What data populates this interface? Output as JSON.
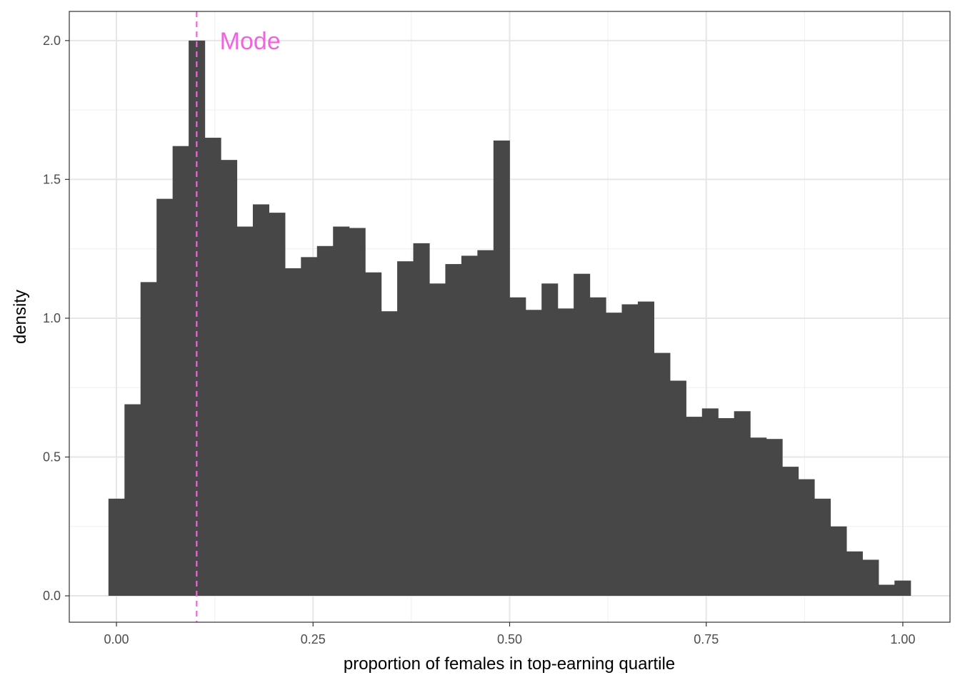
{
  "chart_data": {
    "type": "bar",
    "subtype": "histogram",
    "title": "",
    "xlabel": "proportion of females in top-earning quartile",
    "ylabel": "density",
    "xlim": [
      -0.06,
      1.06
    ],
    "ylim": [
      -0.095,
      2.105
    ],
    "x_ticks": [
      0.0,
      0.25,
      0.5,
      0.75,
      1.0
    ],
    "x_tick_labels": [
      "0.00",
      "0.25",
      "0.50",
      "0.75",
      "1.00"
    ],
    "y_ticks": [
      0.0,
      0.5,
      1.0,
      1.5,
      2.0
    ],
    "y_tick_labels": [
      "0.0",
      "0.5",
      "1.0",
      "1.5",
      "2.0"
    ],
    "grid": true,
    "theme": "bw",
    "bar_color": "#474747",
    "bin_width": 0.0204,
    "bin_start": -0.0102,
    "values": [
      0.35,
      0.69,
      1.13,
      1.43,
      1.62,
      2.0,
      1.65,
      1.57,
      1.33,
      1.41,
      1.38,
      1.18,
      1.22,
      1.26,
      1.33,
      1.325,
      1.165,
      1.025,
      1.205,
      1.27,
      1.125,
      1.195,
      1.225,
      1.245,
      1.64,
      1.075,
      1.03,
      1.125,
      1.035,
      1.16,
      1.075,
      1.02,
      1.05,
      1.06,
      0.875,
      0.775,
      0.645,
      0.675,
      0.64,
      0.665,
      0.57,
      0.565,
      0.465,
      0.42,
      0.35,
      0.25,
      0.16,
      0.13,
      0.04,
      0.055
    ],
    "mode_line": {
      "x": 0.102,
      "color": "#ee66dd",
      "style": "dashed"
    },
    "annotations": [
      {
        "text": "Mode",
        "x": 0.17,
        "y": 2.0,
        "color": "#ee66dd"
      }
    ]
  }
}
